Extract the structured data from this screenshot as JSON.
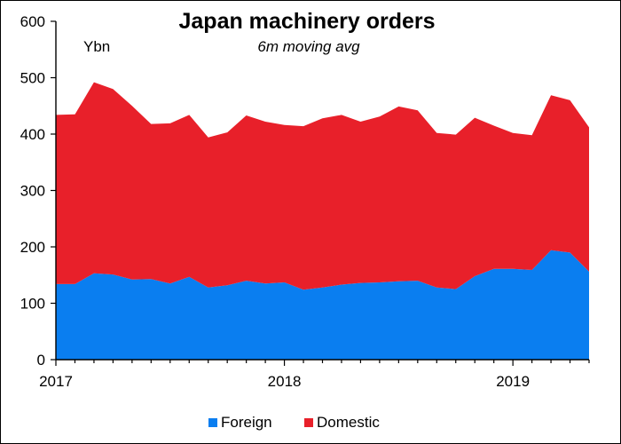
{
  "chart_data": {
    "type": "area",
    "stacked": true,
    "title": "Japan machinery orders",
    "subtitle": "6m moving avg",
    "unit_label": "Ybn",
    "ylim": [
      0,
      600
    ],
    "y_ticks": [
      "0",
      "100",
      "200",
      "300",
      "400",
      "500",
      "600"
    ],
    "x_tick_labels": [
      "2017",
      "2018",
      "2019"
    ],
    "x": [
      "2017-01",
      "2017-02",
      "2017-03",
      "2017-04",
      "2017-05",
      "2017-06",
      "2017-07",
      "2017-08",
      "2017-09",
      "2017-10",
      "2017-11",
      "2017-12",
      "2018-01",
      "2018-02",
      "2018-03",
      "2018-04",
      "2018-05",
      "2018-06",
      "2018-07",
      "2018-08",
      "2018-09",
      "2018-10",
      "2018-11",
      "2018-12",
      "2019-01",
      "2019-02",
      "2019-03",
      "2019-04",
      "2019-05"
    ],
    "series": [
      {
        "name": "Foreign",
        "color": "#0a7ef0",
        "values": [
          134,
          134,
          153,
          151,
          142,
          143,
          135,
          147,
          128,
          132,
          140,
          135,
          137,
          124,
          128,
          133,
          136,
          137,
          139,
          140,
          128,
          125,
          148,
          161,
          161,
          159,
          194,
          190,
          156
        ]
      },
      {
        "name": "Domestic",
        "color": "#e8202a",
        "values": [
          300,
          301,
          339,
          329,
          308,
          275,
          284,
          287,
          266,
          271,
          293,
          287,
          279,
          290,
          300,
          301,
          286,
          294,
          310,
          302,
          274,
          274,
          281,
          254,
          241,
          239,
          275,
          270,
          256
        ]
      }
    ],
    "legend_position": "bottom",
    "grid": false
  }
}
